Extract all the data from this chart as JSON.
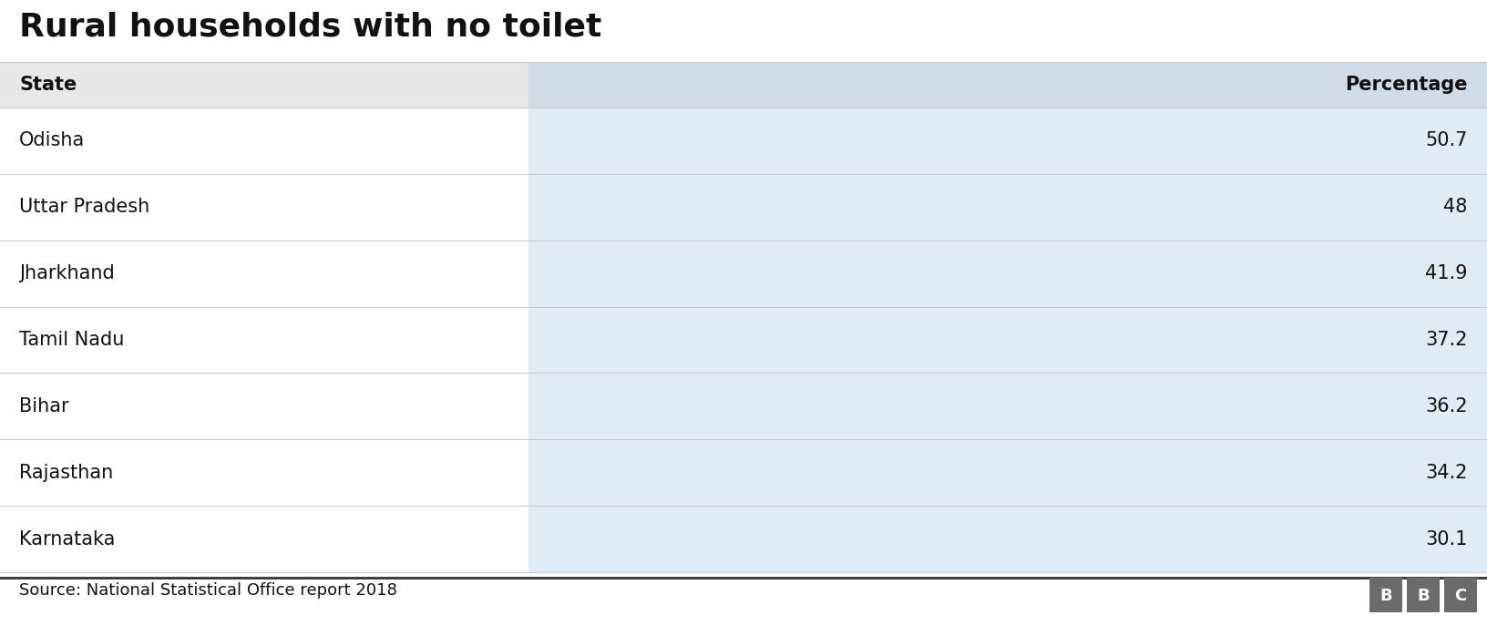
{
  "title": "Rural households with no toilet",
  "col1_header": "State",
  "col2_header": "Percentage",
  "rows": [
    [
      "Odisha",
      "50.7"
    ],
    [
      "Uttar Pradesh",
      "48"
    ],
    [
      "Jharkhand",
      "41.9"
    ],
    [
      "Tamil Nadu",
      "37.2"
    ],
    [
      "Bihar",
      "36.2"
    ],
    [
      "Rajasthan",
      "34.2"
    ],
    [
      "Karnataka",
      "30.1"
    ]
  ],
  "source_text": "Source: National Statistical Office report 2018",
  "bbc_letters": [
    "B",
    "B",
    "C"
  ],
  "title_fontsize": 26,
  "header_fontsize": 15,
  "row_fontsize": 15,
  "source_fontsize": 13,
  "col_split": 0.355,
  "header_bg_left": "#e8e8e8",
  "header_bg_right": "#d0dde8",
  "row_bg_left": "#ffffff",
  "row_bg_right": "#e0ecf5",
  "divider_color": "#c8c8c8",
  "text_color": "#111111",
  "background_color": "#ffffff",
  "footer_line_color": "#333333",
  "bbc_bg": "#6b6b6b",
  "bbc_text_color": "#ffffff"
}
